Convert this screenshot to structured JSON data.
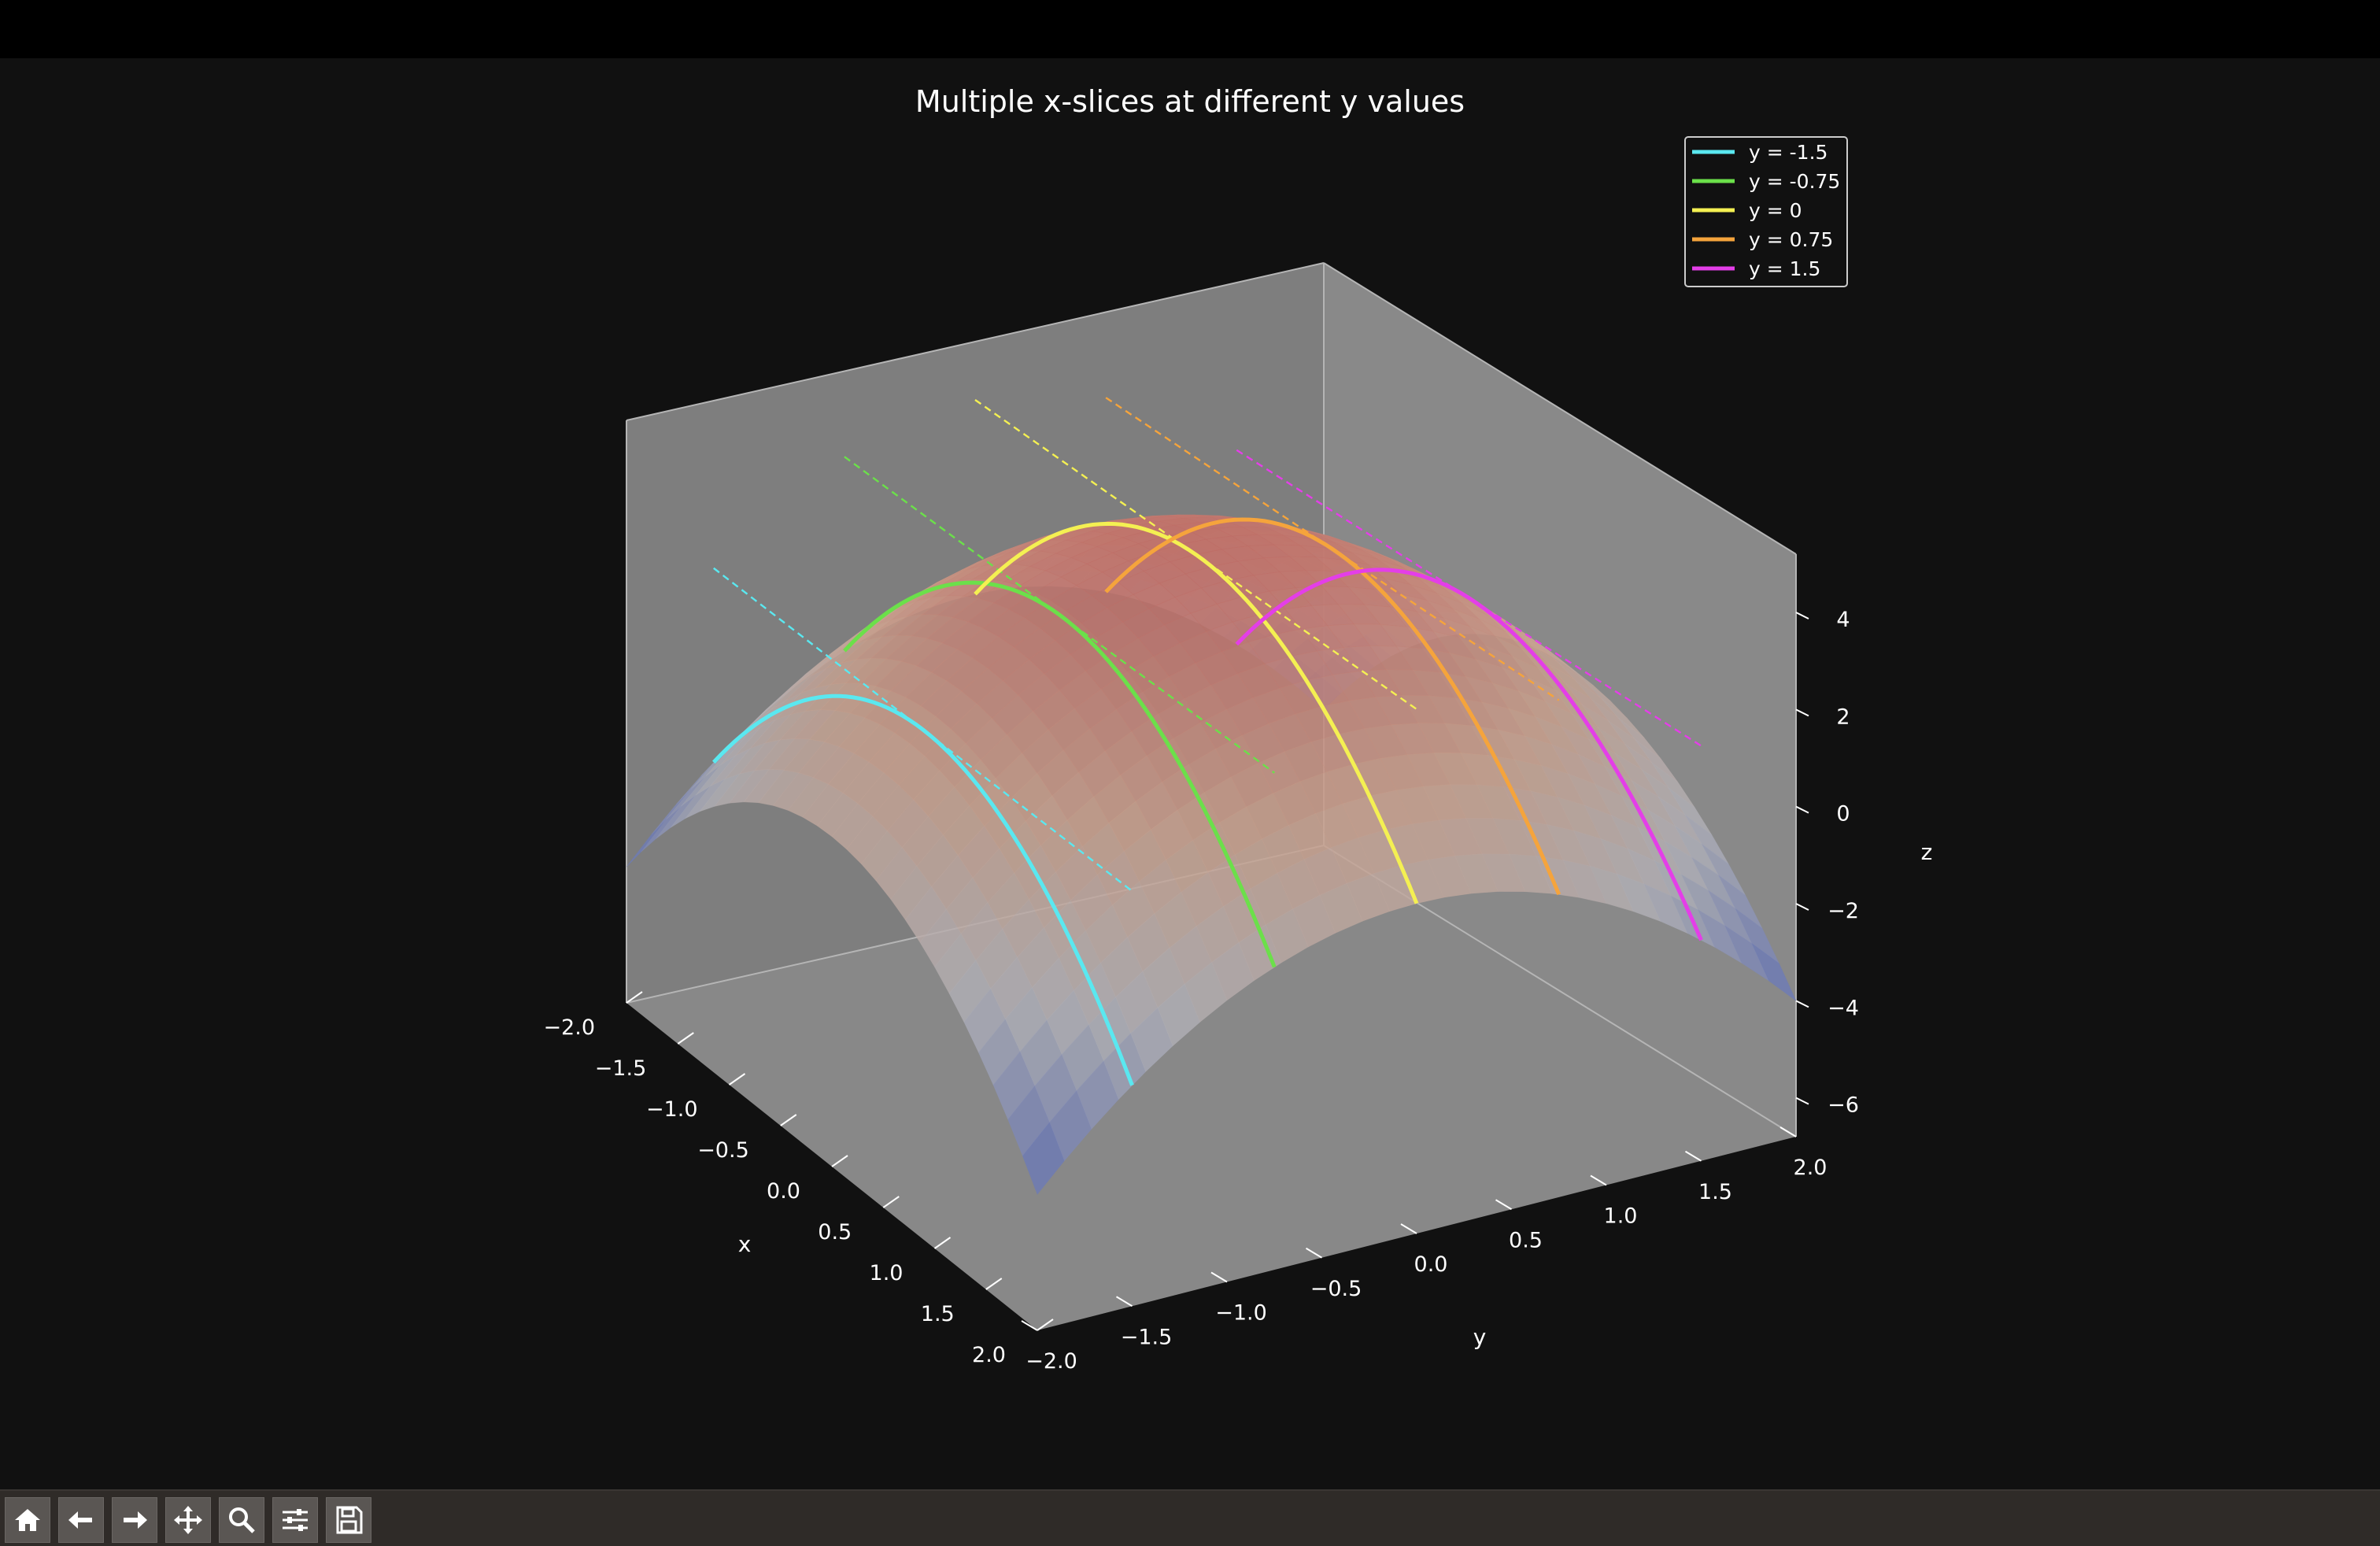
{
  "window": {
    "toolbar": [
      {
        "name": "home-button",
        "icon": "home-icon"
      },
      {
        "name": "back-button",
        "icon": "arrow-left-icon"
      },
      {
        "name": "forward-button",
        "icon": "arrow-right-icon"
      },
      {
        "name": "pan-button",
        "icon": "move-icon"
      },
      {
        "name": "zoom-button",
        "icon": "magnifier-icon"
      },
      {
        "name": "configure-subplots-button",
        "icon": "sliders-icon"
      },
      {
        "name": "save-button",
        "icon": "floppy-disk-icon"
      }
    ]
  },
  "chart_data": {
    "type": "surface3d",
    "title": "Multiple x-slices at different y values",
    "xlabel": "x",
    "ylabel": "y",
    "zlabel": "z",
    "xlim": [
      -2,
      2
    ],
    "ylim": [
      -2,
      2
    ],
    "zlim": [
      -6.8,
      5.2
    ],
    "xticks": [
      "−2.0",
      "−1.5",
      "−1.0",
      "−0.5",
      "0.0",
      "0.5",
      "1.0",
      "1.5",
      "2.0"
    ],
    "yticks": [
      "−2.0",
      "−1.5",
      "−1.0",
      "−0.5",
      "0.0",
      "0.5",
      "1.0",
      "1.5",
      "2.0"
    ],
    "zticks": [
      "−6",
      "−4",
      "−2",
      "0",
      "2",
      "4"
    ],
    "surface": "z = 4 - x^2 - y^2",
    "surface_colormap": [
      "#5d6db5",
      "#b0b1b8",
      "#c9a08c",
      "#c06a64"
    ],
    "series": [
      {
        "name": "y = -1.5",
        "y": -1.5,
        "color": "#5ae8f0"
      },
      {
        "name": "y = -0.75",
        "y": -0.75,
        "color": "#6be04a"
      },
      {
        "name": "y = 0",
        "y": 0,
        "color": "#f4f052"
      },
      {
        "name": "y = 0.75",
        "y": 0.75,
        "color": "#f5a43c"
      },
      {
        "name": "y = 1.5",
        "y": 1.5,
        "color": "#e43ee8"
      }
    ],
    "slice_x": [
      -2.0,
      -1.5,
      -1.0,
      -0.5,
      0.0,
      0.5,
      1.0,
      1.5,
      2.0
    ],
    "slice_z": [
      [
        -2.25,
        -0.5,
        0.75,
        1.5,
        1.75,
        1.5,
        0.75,
        -0.5,
        -2.25
      ],
      [
        -0.5625,
        1.1875,
        2.4375,
        3.1875,
        3.4375,
        3.1875,
        2.4375,
        1.1875,
        -0.5625
      ],
      [
        0.0,
        1.75,
        3.0,
        3.75,
        4.0,
        3.75,
        3.0,
        1.75,
        0.0
      ],
      [
        -0.5625,
        1.1875,
        2.4375,
        3.1875,
        3.4375,
        3.1875,
        2.4375,
        1.1875,
        -0.5625
      ],
      [
        -2.25,
        -0.5,
        0.75,
        1.5,
        1.75,
        1.5,
        0.75,
        -0.5,
        -2.25
      ]
    ],
    "projection": "dashed line at z = max of slice, on far side",
    "legend_position": "top-right",
    "grid": false
  }
}
